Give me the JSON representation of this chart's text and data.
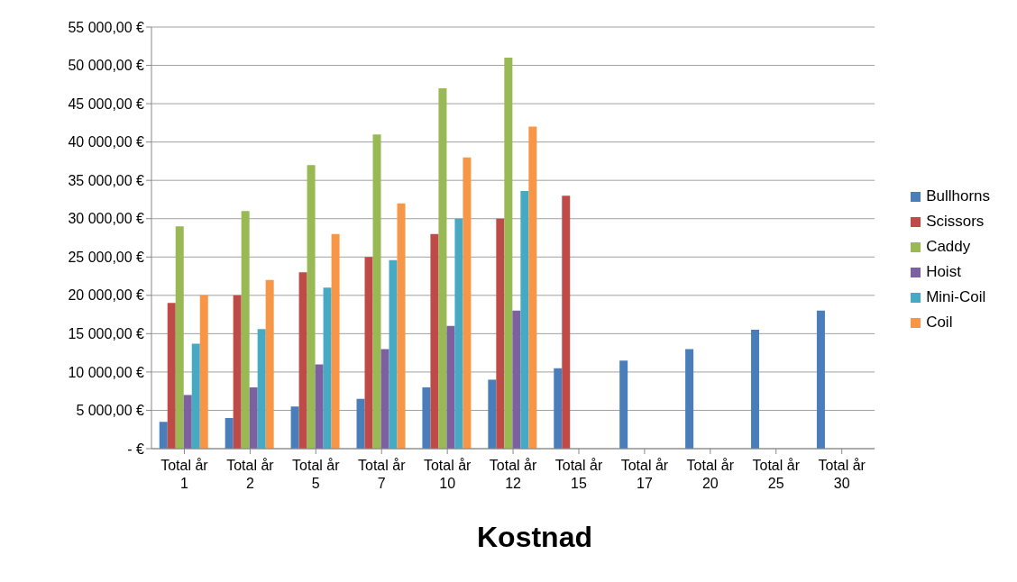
{
  "chart_data": {
    "type": "bar",
    "title": "Kostnad",
    "categories": [
      "Total år 1",
      "Total år 2",
      "Total år 5",
      "Total år 7",
      "Total år 10",
      "Total år 12",
      "Total år 15",
      "Total år 17",
      "Total år 20",
      "Total år 25",
      "Total år 30"
    ],
    "series": [
      {
        "name": "Bullhorns",
        "color": "#4a7ebb",
        "values": [
          3500,
          4000,
          5500,
          6500,
          8000,
          9000,
          10500,
          11500,
          13000,
          15500,
          18000
        ]
      },
      {
        "name": "Scissors",
        "color": "#be4b48",
        "values": [
          19000,
          20000,
          23000,
          25000,
          28000,
          30000,
          33000,
          null,
          null,
          null,
          null
        ]
      },
      {
        "name": "Caddy",
        "color": "#98b954",
        "values": [
          29000,
          31000,
          37000,
          41000,
          47000,
          51000,
          null,
          null,
          null,
          null,
          null
        ]
      },
      {
        "name": "Hoist",
        "color": "#7d60a0",
        "values": [
          7000,
          8000,
          11000,
          13000,
          16000,
          18000,
          null,
          null,
          null,
          null,
          null
        ]
      },
      {
        "name": "Mini-Coil",
        "color": "#46aac5",
        "values": [
          13700,
          15600,
          21000,
          24600,
          30000,
          33600,
          null,
          null,
          null,
          null,
          null
        ]
      },
      {
        "name": "Coil",
        "color": "#f79646",
        "values": [
          20000,
          22000,
          28000,
          32000,
          38000,
          42000,
          null,
          null,
          null,
          null,
          null
        ]
      }
    ],
    "ylim": [
      0,
      55000
    ],
    "yticks": [
      {
        "value": 0,
        "label": "-   €"
      },
      {
        "value": 5000,
        "label": "5 000,00 €"
      },
      {
        "value": 10000,
        "label": "10 000,00 €"
      },
      {
        "value": 15000,
        "label": "15 000,00 €"
      },
      {
        "value": 20000,
        "label": "20 000,00 €"
      },
      {
        "value": 25000,
        "label": "25 000,00 €"
      },
      {
        "value": 30000,
        "label": "30 000,00 €"
      },
      {
        "value": 35000,
        "label": "35 000,00 €"
      },
      {
        "value": 40000,
        "label": "40 000,00 €"
      },
      {
        "value": 45000,
        "label": "45 000,00 €"
      },
      {
        "value": 50000,
        "label": "50 000,00 €"
      },
      {
        "value": 55000,
        "label": "55 000,00 €"
      }
    ],
    "grid": "y",
    "legend": "right"
  }
}
